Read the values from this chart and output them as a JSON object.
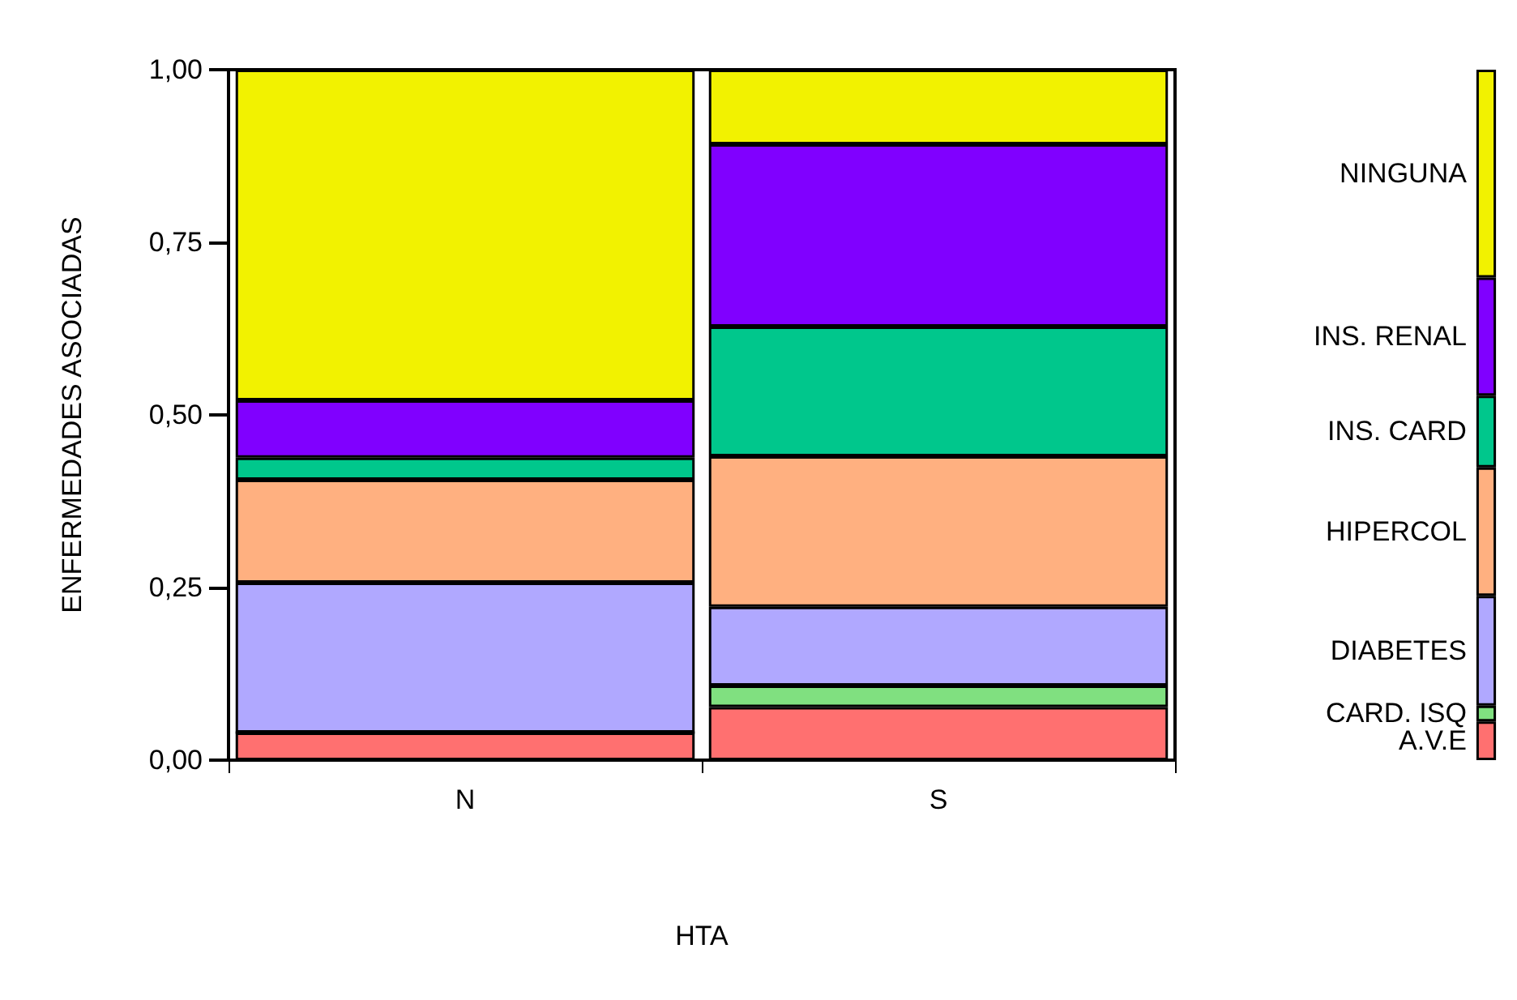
{
  "chart_data": {
    "type": "bar",
    "stacked": true,
    "xlabel": "HTA",
    "ylabel": "ENFERMEDADES ASOCIADAS",
    "categories": [
      "N",
      "S",
      null
    ],
    "ylim": [
      0,
      1
    ],
    "yticks": [
      {
        "value": 0,
        "label": "0,00"
      },
      {
        "value": 0.25,
        "label": "0,25"
      },
      {
        "value": 0.5,
        "label": "0,50"
      },
      {
        "value": 0.75,
        "label": "0,75"
      },
      {
        "value": 1,
        "label": "1,00"
      }
    ],
    "grid": false,
    "legend": false,
    "series": [
      {
        "name": "A.V.E",
        "color": "#ff7070",
        "values": [
          0.04,
          0.077,
          0.056
        ]
      },
      {
        "name": "CARD. ISQ",
        "color": "#80e080",
        "values": [
          0,
          0.031,
          0.023
        ]
      },
      {
        "name": "DIABETES",
        "color": "#b0a8ff",
        "values": [
          0.217,
          0.114,
          0.159
        ]
      },
      {
        "name": "HIPERCOL",
        "color": "#ffb080",
        "values": [
          0.149,
          0.218,
          0.186
        ]
      },
      {
        "name": "INS. CARD",
        "color": "#00c78c",
        "values": [
          0.032,
          0.188,
          0.104
        ]
      },
      {
        "name": "INS. RENAL",
        "color": "#8000ff",
        "values": [
          0.083,
          0.264,
          0.171
        ]
      },
      {
        "name": "NINGUNA",
        "color": "#f2f200",
        "values": [
          0.479,
          0.108,
          0.301
        ]
      }
    ]
  }
}
